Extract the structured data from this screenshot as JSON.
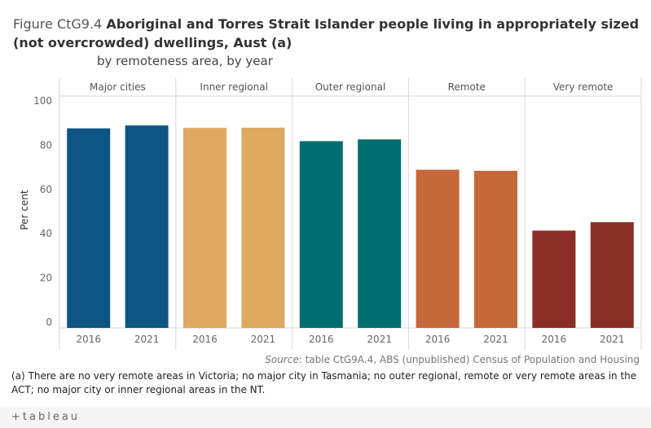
{
  "title": {
    "prefix": "Figure CtG9.4",
    "main": "Aboriginal and Torres Strait Islander people living in appropriately sized (not overcrowded) dwellings, Aust (a)",
    "subtitle": "by remoteness area, by year"
  },
  "source": {
    "label": "Source",
    "text": ": table CtG9A.4, ABS (unpublished) Census of Population and Housing"
  },
  "footnote": "(a) There are no very remote areas in Victoria; no major city in Tasmania; no outer regional, remote or very remote areas in the ACT; no major city or inner regional areas in the NT.",
  "footer": {
    "logo_text": "+tableau"
  },
  "chart_data": {
    "type": "bar",
    "ylabel": "Per cent",
    "ylim": [
      0,
      100
    ],
    "yticks": [
      0,
      20,
      40,
      60,
      80,
      100
    ],
    "panels": [
      {
        "name": "Major cities",
        "color": "#0e5583",
        "x": [
          "2016",
          "2021"
        ],
        "values": [
          87.6,
          88.9
        ]
      },
      {
        "name": "Inner regional",
        "color": "#e0a75e",
        "x": [
          "2016",
          "2021"
        ],
        "values": [
          87.8,
          87.9
        ]
      },
      {
        "name": "Outer regional",
        "color": "#006d70",
        "x": [
          "2016",
          "2021"
        ],
        "values": [
          81.8,
          82.6
        ]
      },
      {
        "name": "Remote",
        "color": "#c6683a",
        "x": [
          "2016",
          "2021"
        ],
        "values": [
          68.9,
          68.4
        ]
      },
      {
        "name": "Very remote",
        "color": "#8a2f28",
        "x": [
          "2016",
          "2021"
        ],
        "values": [
          41.4,
          45.2
        ]
      }
    ]
  }
}
